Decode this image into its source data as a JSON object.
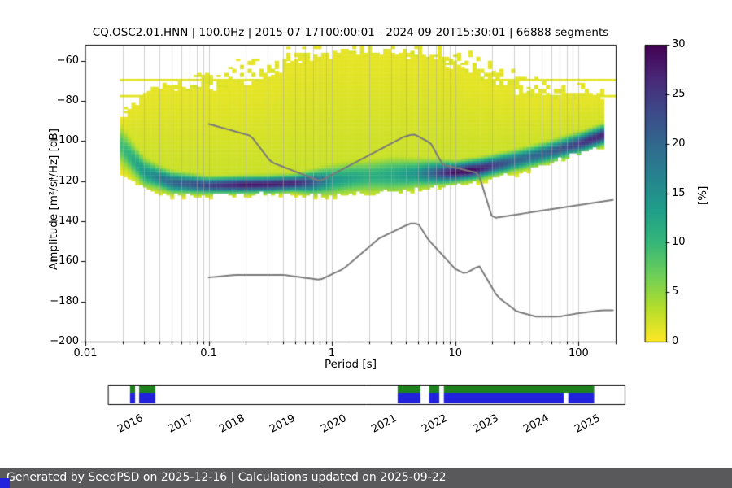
{
  "header": {
    "title": "CQ.OSC2.01.HNN | 100.0Hz | 2015-07-17T00:00:01 - 2024-09-20T15:30:01 | 66888 segments"
  },
  "chart_data": {
    "type": "heatmap",
    "title": "CQ.OSC2.01.HNN | 100.0Hz | 2015-07-17T00:00:01 - 2024-09-20T15:30:01 | 66888 segments",
    "xlabel": "Period [s]",
    "ylabel": "Amplitude [m²/s⁴/Hz] [dB]",
    "xscale": "log",
    "xlim": [
      0.01,
      200
    ],
    "ylim": [
      -200,
      -52
    ],
    "xticks": [
      0.01,
      0.1,
      1,
      10,
      100
    ],
    "xtick_labels": [
      "0.01",
      "0.1",
      "1",
      "10",
      "100"
    ],
    "yticks": [
      -200,
      -180,
      -160,
      -140,
      -120,
      -100,
      -80,
      -60
    ],
    "ytick_labels": [
      "−200",
      "−180",
      "−160",
      "−140",
      "−120",
      "−100",
      "−80",
      "−60"
    ],
    "grid": "vertical-log-major-minor",
    "colorbar": {
      "label": "[%]",
      "min": 0,
      "max": 30,
      "ticks": [
        0,
        5,
        10,
        15,
        20,
        25,
        30
      ],
      "colormap": "viridis_r",
      "viridis_stops": [
        "#440154",
        "#482878",
        "#3e4989",
        "#31688e",
        "#26828e",
        "#1f9e89",
        "#35b779",
        "#6ece58",
        "#b5de2b",
        "#fde725"
      ]
    },
    "ppsd": {
      "period_range": [
        0.019,
        166
      ],
      "streak_period_max": 200,
      "streak_rows_db": [
        -70,
        -78
      ],
      "mode_curve": [
        [
          0.019,
          -102
        ],
        [
          0.03,
          -116
        ],
        [
          0.05,
          -121
        ],
        [
          0.1,
          -122.5
        ],
        [
          0.3,
          -122
        ],
        [
          0.7,
          -121
        ],
        [
          1.5,
          -118.5
        ],
        [
          3,
          -117.5
        ],
        [
          6,
          -116.5
        ],
        [
          10,
          -116
        ],
        [
          15,
          -114.5
        ],
        [
          25,
          -111.5
        ],
        [
          40,
          -108.5
        ],
        [
          70,
          -104.5
        ],
        [
          110,
          -101
        ],
        [
          166,
          -97
        ]
      ],
      "sigma_curve": [
        [
          0.019,
          6
        ],
        [
          0.04,
          3.5
        ],
        [
          0.1,
          2.5
        ],
        [
          0.5,
          2.5
        ],
        [
          1,
          4.5
        ],
        [
          3,
          5.5
        ],
        [
          6,
          4
        ],
        [
          10,
          3
        ],
        [
          20,
          3
        ],
        [
          50,
          3.2
        ],
        [
          166,
          3
        ]
      ],
      "peak_percent_curve": [
        [
          0.019,
          9
        ],
        [
          0.03,
          14
        ],
        [
          0.05,
          20
        ],
        [
          0.1,
          24
        ],
        [
          0.2,
          28
        ],
        [
          0.5,
          27
        ],
        [
          0.7,
          22
        ],
        [
          1,
          14
        ],
        [
          2,
          11
        ],
        [
          3,
          12
        ],
        [
          5,
          15
        ],
        [
          7,
          22
        ],
        [
          9,
          28
        ],
        [
          13,
          30
        ],
        [
          18,
          26
        ],
        [
          30,
          20
        ],
        [
          50,
          20
        ],
        [
          80,
          23
        ],
        [
          120,
          26
        ],
        [
          166,
          27
        ]
      ],
      "upper_dense_env": [
        [
          0.019,
          -90
        ],
        [
          0.03,
          -78
        ],
        [
          0.05,
          -74
        ],
        [
          0.2,
          -72
        ],
        [
          0.4,
          -64
        ],
        [
          0.8,
          -58
        ],
        [
          2,
          -56
        ],
        [
          6,
          -58
        ],
        [
          12,
          -64
        ],
        [
          25,
          -74
        ],
        [
          60,
          -78
        ],
        [
          166,
          -78
        ]
      ],
      "upper_scatter_env": [
        [
          0.019,
          -80
        ],
        [
          0.05,
          -70
        ],
        [
          0.1,
          -62
        ],
        [
          0.3,
          -54
        ],
        [
          0.8,
          -50
        ],
        [
          6,
          -49
        ],
        [
          12,
          -52
        ],
        [
          25,
          -60
        ],
        [
          60,
          -70
        ],
        [
          166,
          -72
        ]
      ],
      "lower_env": [
        [
          0.019,
          -116
        ],
        [
          0.03,
          -122
        ],
        [
          0.05,
          -127
        ],
        [
          0.3,
          -126
        ],
        [
          1,
          -127
        ],
        [
          5,
          -124
        ],
        [
          10,
          -122
        ],
        [
          20,
          -119
        ],
        [
          40,
          -114
        ],
        [
          80,
          -108
        ],
        [
          166,
          -101
        ]
      ]
    },
    "noise_models": {
      "color": "#7a7a7a",
      "nhnm": [
        [
          0.1,
          -91.5
        ],
        [
          0.22,
          -97.4
        ],
        [
          0.32,
          -110.5
        ],
        [
          0.8,
          -120
        ],
        [
          3.8,
          -98
        ],
        [
          4.6,
          -96.5
        ],
        [
          6.3,
          -101
        ],
        [
          7.9,
          -111.8
        ],
        [
          15.4,
          -116
        ],
        [
          20,
          -138.5
        ],
        [
          190,
          -129.3
        ]
      ],
      "nlnm": [
        [
          0.1,
          -168
        ],
        [
          0.17,
          -166.7
        ],
        [
          0.4,
          -166.7
        ],
        [
          0.8,
          -169.2
        ],
        [
          1.24,
          -163.7
        ],
        [
          2.4,
          -148.6
        ],
        [
          4.3,
          -141.1
        ],
        [
          5,
          -141.1
        ],
        [
          6,
          -149
        ],
        [
          10,
          -163.8
        ],
        [
          12,
          -166.2
        ],
        [
          15.6,
          -162.1
        ],
        [
          21.9,
          -177.5
        ],
        [
          31.6,
          -185
        ],
        [
          45,
          -187.5
        ],
        [
          70,
          -187.5
        ],
        [
          101,
          -185.8
        ],
        [
          154,
          -184.4
        ],
        [
          190,
          -184.4
        ]
      ]
    }
  },
  "timeline": {
    "xlim": [
      2015.33,
      2025.5
    ],
    "years": [
      2016,
      2017,
      2018,
      2019,
      2020,
      2021,
      2022,
      2023,
      2024,
      2025
    ],
    "green_color": "#1d821d",
    "blue_color": "#2222dd",
    "green_segments": [
      [
        2015.76,
        2015.86
      ],
      [
        2015.94,
        2016.26
      ],
      [
        2021.03,
        2021.48
      ],
      [
        2021.65,
        2021.85
      ],
      [
        2021.94,
        2024.9
      ]
    ],
    "blue_segments": [
      [
        2015.76,
        2015.86
      ],
      [
        2015.94,
        2016.26
      ],
      [
        2021.03,
        2021.48
      ],
      [
        2021.65,
        2021.85
      ],
      [
        2021.94,
        2024.3
      ],
      [
        2024.39,
        2024.9
      ]
    ]
  },
  "footer": {
    "text": "Generated by SeedPSD on 2025-12-16 | Calculations updated on 2025-09-22",
    "bg": "#59595b",
    "accent_square_color": "#2121de"
  }
}
